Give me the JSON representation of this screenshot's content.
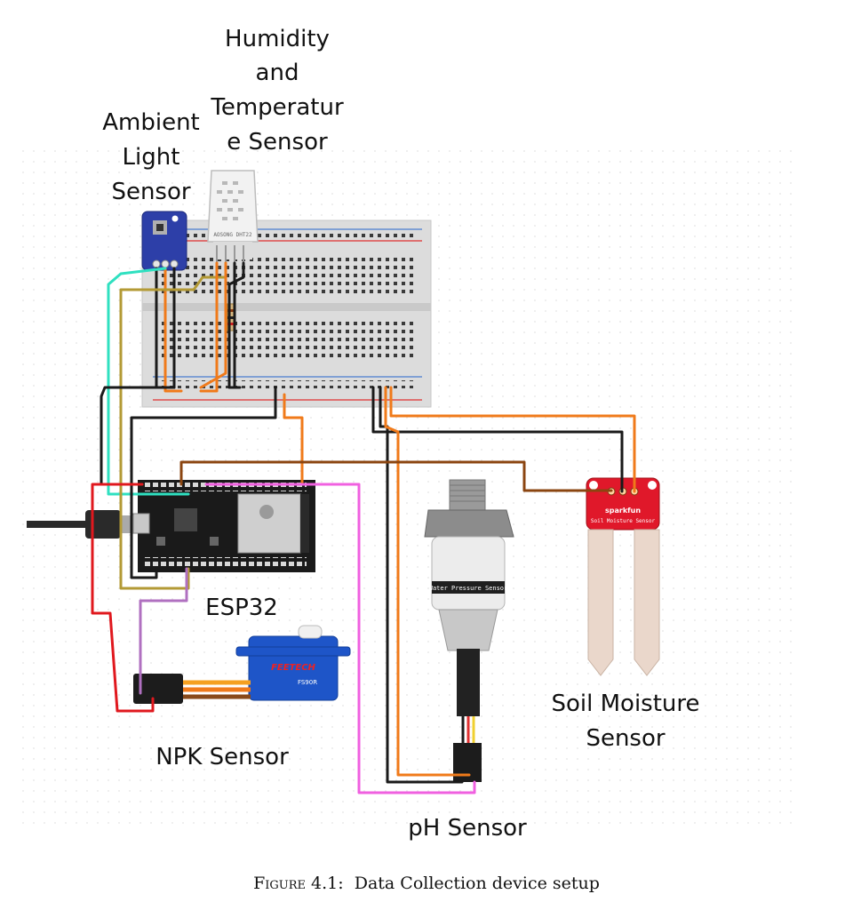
{
  "labels": {
    "humidity": [
      "Humidity",
      "and",
      "Temperatur",
      "e Sensor"
    ],
    "ambient": [
      "Ambient",
      "Light",
      "Sensor"
    ],
    "esp32": "ESP32",
    "npk": "NPK Sensor",
    "soil": [
      "Soil Moisture",
      "Sensor"
    ],
    "ph": "pH Sensor"
  },
  "component_text": {
    "dht_marking": "AOSONG DHT22",
    "sparkfun": "sparkfun",
    "soil_sensor_text": "Soil Moisture Sensor",
    "servo_brand": "FEETECH",
    "servo_model": "FS90R",
    "pressure_text": "Water Pressure Sensor"
  },
  "caption": {
    "figure": "Figure 4.1:",
    "text": "Data Collection device setup"
  },
  "colors": {
    "orange": "#f07a1a",
    "black": "#1a1a1a",
    "teal": "#2fe0c0",
    "olive": "#b39a35",
    "red": "#e0181e",
    "magenta": "#f060e0",
    "brown": "#8b4510",
    "purple": "#b070c0"
  }
}
